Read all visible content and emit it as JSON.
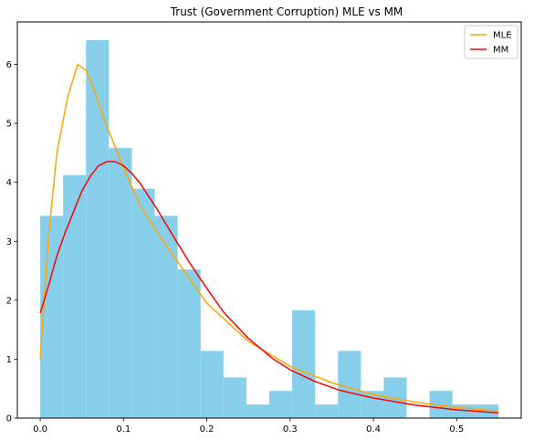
{
  "chart_data": {
    "type": "histogram",
    "title": "Trust (Government Corruption) MLE vs MM",
    "xlabel": "",
    "ylabel": "",
    "xlim": [
      -0.0275,
      0.5775
    ],
    "ylim": [
      0,
      6.72
    ],
    "grid": false,
    "legend_position": "top-right",
    "x_ticks": [
      0.0,
      0.1,
      0.2,
      0.3,
      0.4,
      0.5
    ],
    "x_tick_labels": [
      "0.0",
      "0.1",
      "0.2",
      "0.3",
      "0.4",
      "0.5"
    ],
    "y_ticks": [
      0,
      1,
      2,
      3,
      4,
      5,
      6
    ],
    "y_tick_labels": [
      "0",
      "1",
      "2",
      "3",
      "4",
      "5",
      "6"
    ],
    "histogram": {
      "color": "#87ceeb",
      "bin_edges": [
        0.0,
        0.0275,
        0.055,
        0.0825,
        0.11,
        0.1375,
        0.165,
        0.1925,
        0.22,
        0.2475,
        0.275,
        0.3025,
        0.33,
        0.3575,
        0.385,
        0.4125,
        0.44,
        0.4675,
        0.495,
        0.5225,
        0.55
      ],
      "values": [
        3.43,
        4.12,
        6.41,
        4.58,
        3.89,
        3.43,
        2.52,
        1.14,
        0.69,
        0.23,
        0.46,
        1.83,
        0.23,
        1.14,
        0.46,
        0.69,
        0.0,
        0.46,
        0.23,
        0.23
      ]
    },
    "series": [
      {
        "name": "MLE",
        "color": "#ffa500",
        "x": [
          0.0,
          0.01,
          0.02,
          0.033,
          0.045,
          0.055,
          0.065,
          0.08,
          0.1,
          0.12,
          0.15,
          0.18,
          0.2,
          0.25,
          0.3,
          0.35,
          0.4,
          0.45,
          0.5,
          0.55
        ],
        "y": [
          1.0,
          3.1,
          4.5,
          5.45,
          6.0,
          5.9,
          5.55,
          4.95,
          4.25,
          3.6,
          2.95,
          2.35,
          1.95,
          1.3,
          0.88,
          0.6,
          0.4,
          0.27,
          0.18,
          0.12
        ]
      },
      {
        "name": "MM",
        "color": "#ff0000",
        "x": [
          0.0,
          0.01,
          0.02,
          0.03,
          0.04,
          0.05,
          0.06,
          0.07,
          0.08,
          0.09,
          0.1,
          0.11,
          0.12,
          0.14,
          0.16,
          0.18,
          0.2,
          0.22,
          0.25,
          0.28,
          0.3,
          0.33,
          0.36,
          0.4,
          0.45,
          0.5,
          0.55
        ],
        "y": [
          1.78,
          2.25,
          2.75,
          3.15,
          3.5,
          3.85,
          4.1,
          4.28,
          4.35,
          4.35,
          4.28,
          4.15,
          3.98,
          3.55,
          3.08,
          2.62,
          2.2,
          1.8,
          1.35,
          1.0,
          0.82,
          0.62,
          0.47,
          0.34,
          0.22,
          0.14,
          0.09
        ]
      }
    ]
  }
}
